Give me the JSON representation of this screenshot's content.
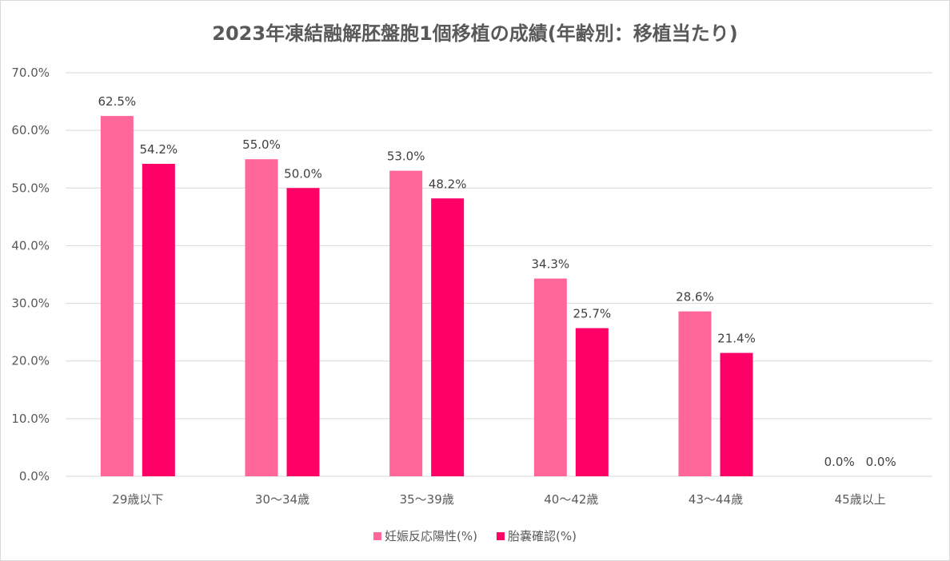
{
  "chart_data": {
    "type": "bar",
    "title": "2023年凍結融解胚盤胞1個移植の成績(年齢別：移植当たり)",
    "categories": [
      "29歳以下",
      "30～34歳",
      "35～39歳",
      "40～42歳",
      "43～44歳",
      "45歳以上"
    ],
    "series": [
      {
        "name": "妊娠反応陽性(%)",
        "color": "#ff6699",
        "values": [
          62.5,
          55.0,
          53.0,
          34.3,
          28.6,
          0.0
        ],
        "labels": [
          "62.5%",
          "55.0%",
          "53.0%",
          "34.3%",
          "28.6%",
          "0.0%"
        ]
      },
      {
        "name": "胎嚢確認(%)",
        "color": "#ff0066",
        "values": [
          54.2,
          50.0,
          48.2,
          25.7,
          21.4,
          0.0
        ],
        "labels": [
          "54.2%",
          "50.0%",
          "48.2%",
          "25.7%",
          "21.4%",
          "0.0%"
        ]
      }
    ],
    "ylim": [
      0,
      70
    ],
    "yticks": [
      {
        "value": 0,
        "label": "0.0%"
      },
      {
        "value": 10,
        "label": "10.0%"
      },
      {
        "value": 20,
        "label": "20.0%"
      },
      {
        "value": 30,
        "label": "30.0%"
      },
      {
        "value": 40,
        "label": "40.0%"
      },
      {
        "value": 50,
        "label": "50.0%"
      },
      {
        "value": 60,
        "label": "60.0%"
      },
      {
        "value": 70,
        "label": "70.0%"
      }
    ],
    "grid": true,
    "legend_position": "bottom"
  }
}
